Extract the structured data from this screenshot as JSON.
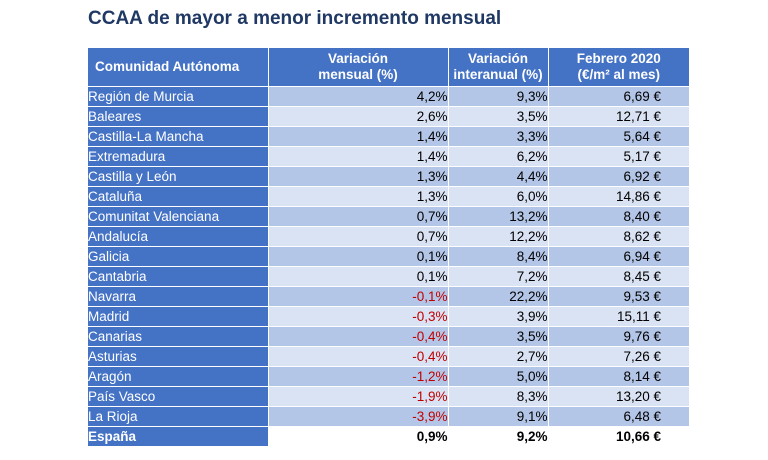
{
  "title": "CCAA de mayor a menor incremento mensual",
  "table": {
    "headers": {
      "ccaa": "Comunidad Autónoma",
      "variacion_mensual": [
        "Variación",
        "mensual (%)"
      ],
      "variacion_interanual": [
        "Variación",
        "interanual (%)"
      ],
      "precio": [
        "Febrero 2020",
        "(€/m² al mes)"
      ]
    },
    "rows": [
      {
        "ccaa": "Región de Murcia",
        "mensual": "4,2%",
        "interanual": "9,3%",
        "precio": "6,69 €",
        "negative": false
      },
      {
        "ccaa": "Baleares",
        "mensual": "2,6%",
        "interanual": "3,5%",
        "precio": "12,71 €",
        "negative": false
      },
      {
        "ccaa": "Castilla-La Mancha",
        "mensual": "1,4%",
        "interanual": "3,3%",
        "precio": "5,64 €",
        "negative": false
      },
      {
        "ccaa": "Extremadura",
        "mensual": "1,4%",
        "interanual": "6,2%",
        "precio": "5,17 €",
        "negative": false
      },
      {
        "ccaa": "Castilla y León",
        "mensual": "1,3%",
        "interanual": "4,4%",
        "precio": "6,92 €",
        "negative": false
      },
      {
        "ccaa": "Cataluña",
        "mensual": "1,3%",
        "interanual": "6,0%",
        "precio": "14,86 €",
        "negative": false
      },
      {
        "ccaa": "Comunitat Valenciana",
        "mensual": "0,7%",
        "interanual": "13,2%",
        "precio": "8,40 €",
        "negative": false
      },
      {
        "ccaa": "Andalucía",
        "mensual": "0,7%",
        "interanual": "12,2%",
        "precio": "8,62 €",
        "negative": false
      },
      {
        "ccaa": "Galicia",
        "mensual": "0,1%",
        "interanual": "8,4%",
        "precio": "6,94 €",
        "negative": false
      },
      {
        "ccaa": "Cantabria",
        "mensual": "0,1%",
        "interanual": "7,2%",
        "precio": "8,45 €",
        "negative": false
      },
      {
        "ccaa": "Navarra",
        "mensual": "-0,1%",
        "interanual": "22,2%",
        "precio": "9,53 €",
        "negative": true
      },
      {
        "ccaa": "Madrid",
        "mensual": "-0,3%",
        "interanual": "3,9%",
        "precio": "15,11 €",
        "negative": true
      },
      {
        "ccaa": "Canarias",
        "mensual": "-0,4%",
        "interanual": "3,5%",
        "precio": "9,76 €",
        "negative": true
      },
      {
        "ccaa": "Asturias",
        "mensual": "-0,4%",
        "interanual": "2,7%",
        "precio": "7,26 €",
        "negative": true
      },
      {
        "ccaa": "Aragón",
        "mensual": "-1,2%",
        "interanual": "5,0%",
        "precio": "8,14 €",
        "negative": true
      },
      {
        "ccaa": "País Vasco",
        "mensual": "-1,9%",
        "interanual": "8,3%",
        "precio": "13,20 €",
        "negative": true
      },
      {
        "ccaa": "La Rioja",
        "mensual": "-3,9%",
        "interanual": "9,1%",
        "precio": "6,48 €",
        "negative": true
      }
    ],
    "total": {
      "ccaa": "España",
      "mensual": "0,9%",
      "interanual": "9,2%",
      "precio": "10,66 €"
    }
  },
  "colors": {
    "title": "#1f3864",
    "header_bg": "#4472c4",
    "row_dark": "#b4c6e7",
    "row_light": "#dae3f3",
    "negative": "#c00000"
  }
}
